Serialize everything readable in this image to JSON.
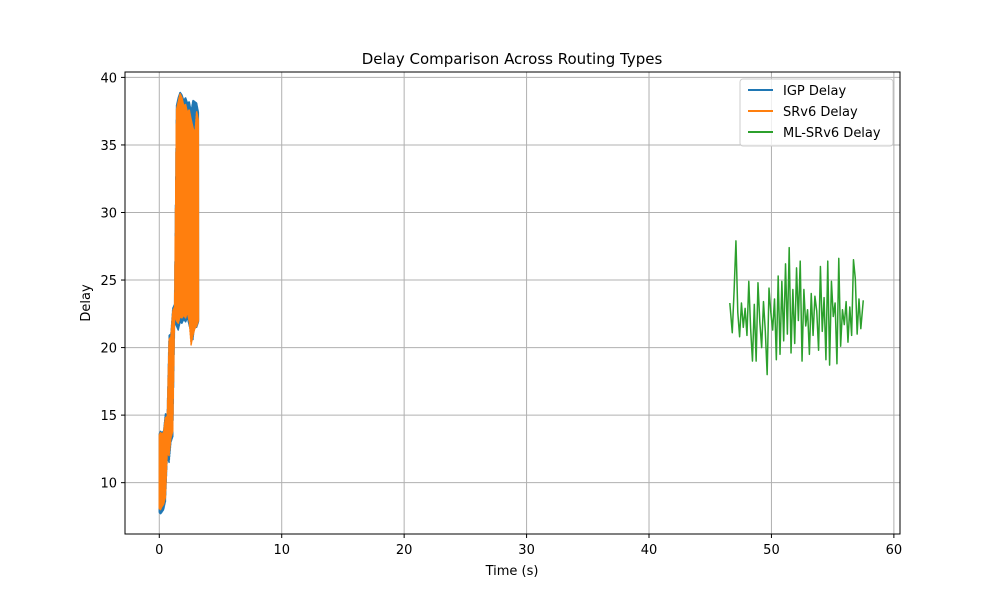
{
  "chart_data": {
    "type": "line",
    "title": "Delay Comparison Across Routing Types",
    "xlabel": "Time (s)",
    "ylabel": "Delay",
    "xlim": [
      -2.8,
      60.5
    ],
    "ylim": [
      6.2,
      40.4
    ],
    "xticks": [
      0,
      10,
      20,
      30,
      40,
      50,
      60
    ],
    "yticks": [
      10,
      15,
      20,
      25,
      30,
      35,
      40
    ],
    "grid": true,
    "legend_position": "top-right",
    "series": [
      {
        "name": "IGP Delay",
        "color": "#1f77b4",
        "band": [
          [
            0.0,
            7.8,
            13.6
          ],
          [
            0.1,
            7.7,
            13.8
          ],
          [
            0.2,
            7.8,
            13.7
          ],
          [
            0.35,
            8.0,
            13.8
          ],
          [
            0.5,
            8.6,
            15.1
          ],
          [
            0.65,
            11.9,
            15.0
          ],
          [
            0.8,
            11.5,
            20.9
          ],
          [
            0.95,
            13.0,
            21.0
          ],
          [
            1.1,
            13.4,
            22.9
          ],
          [
            1.25,
            21.9,
            23.2
          ],
          [
            1.4,
            21.6,
            37.9
          ],
          [
            1.55,
            21.3,
            38.5
          ],
          [
            1.7,
            21.9,
            38.9
          ],
          [
            1.85,
            21.8,
            38.7
          ],
          [
            2.0,
            22.1,
            38.3
          ],
          [
            2.15,
            21.9,
            38.5
          ],
          [
            2.3,
            22.2,
            38.1
          ],
          [
            2.45,
            21.6,
            38.2
          ],
          [
            2.6,
            21.3,
            37.5
          ],
          [
            2.75,
            20.6,
            38.3
          ],
          [
            2.9,
            21.8,
            38.2
          ],
          [
            3.05,
            21.5,
            38.1
          ],
          [
            3.2,
            21.9,
            37.4
          ]
        ]
      },
      {
        "name": "SRv6 Delay",
        "color": "#ff7f0e",
        "band": [
          [
            0.0,
            8.1,
            13.5
          ],
          [
            0.1,
            8.0,
            13.7
          ],
          [
            0.2,
            8.2,
            13.6
          ],
          [
            0.35,
            8.4,
            13.7
          ],
          [
            0.5,
            8.9,
            14.8
          ],
          [
            0.65,
            12.2,
            14.9
          ],
          [
            0.8,
            12.0,
            20.6
          ],
          [
            0.95,
            13.3,
            20.8
          ],
          [
            1.1,
            13.8,
            22.7
          ],
          [
            1.25,
            22.3,
            23.0
          ],
          [
            1.4,
            22.0,
            37.6
          ],
          [
            1.55,
            21.8,
            38.2
          ],
          [
            1.7,
            22.3,
            38.8
          ],
          [
            1.85,
            22.2,
            38.5
          ],
          [
            2.0,
            22.4,
            37.9
          ],
          [
            2.15,
            22.2,
            38.0
          ],
          [
            2.3,
            22.6,
            37.4
          ],
          [
            2.45,
            21.9,
            37.6
          ],
          [
            2.6,
            20.2,
            36.9
          ],
          [
            2.75,
            20.9,
            36.3
          ],
          [
            2.9,
            21.4,
            35.8
          ],
          [
            3.05,
            21.6,
            37.5
          ],
          [
            3.2,
            22.0,
            36.8
          ]
        ]
      },
      {
        "name": "ML-SRv6 Delay",
        "color": "#2ca02c",
        "x": [
          46.6,
          46.8,
          46.95,
          47.1,
          47.25,
          47.4,
          47.55,
          47.7,
          47.85,
          48.0,
          48.15,
          48.3,
          48.45,
          48.6,
          48.75,
          48.9,
          49.05,
          49.2,
          49.35,
          49.5,
          49.65,
          49.8,
          49.95,
          50.1,
          50.25,
          50.4,
          50.55,
          50.7,
          50.85,
          51.0,
          51.15,
          51.3,
          51.45,
          51.6,
          51.75,
          51.9,
          52.05,
          52.2,
          52.35,
          52.5,
          52.65,
          52.8,
          52.95,
          53.1,
          53.25,
          53.4,
          53.55,
          53.7,
          53.85,
          54.0,
          54.15,
          54.3,
          54.45,
          54.6,
          54.75,
          54.9,
          55.05,
          55.2,
          55.35,
          55.5,
          55.65,
          55.8,
          55.95,
          56.1,
          56.25,
          56.4,
          56.55,
          56.7,
          56.85,
          57.0,
          57.15,
          57.3,
          57.5
        ],
        "values": [
          23.3,
          21.1,
          24.2,
          27.9,
          22.6,
          20.8,
          23.3,
          21.5,
          22.9,
          20.9,
          24.9,
          21.4,
          19.0,
          23.2,
          19.0,
          24.8,
          21.9,
          20.0,
          23.4,
          21.2,
          18.0,
          24.4,
          22.6,
          21.3,
          23.6,
          19.1,
          25.3,
          19.5,
          24.9,
          20.5,
          26.2,
          21.0,
          27.4,
          19.6,
          24.3,
          20.3,
          25.9,
          22.0,
          26.4,
          19.0,
          24.3,
          21.6,
          22.8,
          19.5,
          24.0,
          20.9,
          23.8,
          22.7,
          19.8,
          26.0,
          21.2,
          23.7,
          19.1,
          26.4,
          18.7,
          24.9,
          22.3,
          23.3,
          18.8,
          26.6,
          20.1,
          22.8,
          21.7,
          23.4,
          20.4,
          23.0,
          20.9,
          26.5,
          25.1,
          21.0,
          23.6,
          21.4,
          23.5
        ]
      }
    ]
  }
}
